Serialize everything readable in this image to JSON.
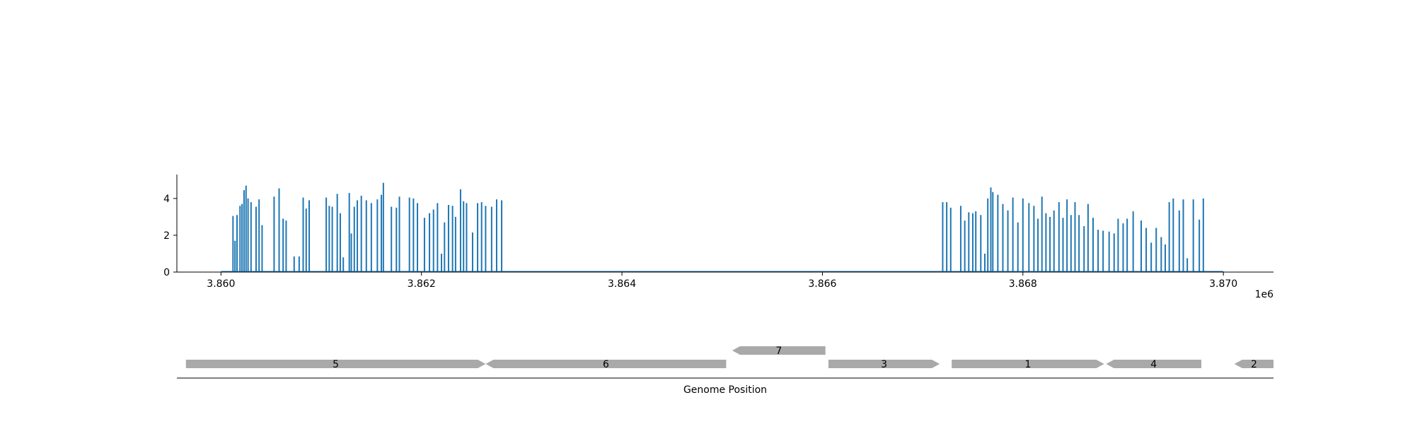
{
  "chart_data": [
    {
      "type": "bar",
      "title": "",
      "xlabel": "",
      "ylabel": "",
      "x_offset_label": "1e6",
      "xlim": [
        3859560,
        3870500
      ],
      "ylim": [
        0,
        5.3
      ],
      "xticks": [
        3860000,
        3862000,
        3864000,
        3866000,
        3868000,
        3870000
      ],
      "xtick_labels": [
        "3.860",
        "3.862",
        "3.864",
        "3.866",
        "3.868",
        "3.870"
      ],
      "yticks": [
        0,
        2,
        4
      ],
      "ytick_labels": [
        "0",
        "2",
        "4"
      ],
      "grid": false,
      "baseline_range": [
        3860000,
        3870000
      ],
      "color": "#1f77b4",
      "x": [
        3860120,
        3860140,
        3860160,
        3860190,
        3860210,
        3860230,
        3860250,
        3860270,
        3860300,
        3860350,
        3860380,
        3860410,
        3860530,
        3860580,
        3860620,
        3860650,
        3860730,
        3860780,
        3860820,
        3860850,
        3860880,
        3861050,
        3861080,
        3861110,
        3861160,
        3861190,
        3861220,
        3861280,
        3861300,
        3861330,
        3861360,
        3861400,
        3861450,
        3861500,
        3861560,
        3861600,
        3861620,
        3861700,
        3861750,
        3861780,
        3861880,
        3861920,
        3861960,
        3862030,
        3862080,
        3862120,
        3862160,
        3862200,
        3862230,
        3862270,
        3862310,
        3862340,
        3862390,
        3862420,
        3862450,
        3862510,
        3862560,
        3862600,
        3862640,
        3862700,
        3862750,
        3862800
      ],
      "values": [
        3.05,
        1.7,
        3.1,
        3.6,
        3.7,
        4.45,
        4.7,
        4.0,
        3.8,
        3.55,
        3.95,
        2.55,
        4.1,
        4.55,
        2.9,
        2.8,
        0.85,
        0.85,
        4.05,
        3.45,
        3.9,
        4.05,
        3.6,
        3.55,
        4.25,
        3.2,
        0.8,
        4.3,
        2.1,
        3.55,
        3.9,
        4.15,
        3.9,
        3.75,
        3.95,
        4.2,
        4.85,
        3.55,
        3.5,
        4.1,
        4.05,
        4.0,
        3.75,
        2.95,
        3.2,
        3.4,
        3.75,
        1.0,
        2.7,
        3.65,
        3.6,
        3.0,
        4.5,
        3.85,
        3.75,
        2.15,
        3.75,
        3.8,
        3.6,
        3.55,
        3.95,
        3.9
      ],
      "x2": [
        3867200,
        3867240,
        3867280,
        3867380,
        3867420,
        3867460,
        3867500,
        3867530,
        3867580,
        3867620,
        3867650,
        3867680,
        3867700,
        3867750,
        3867800,
        3867850,
        3867900,
        3867950,
        3868000,
        3868060,
        3868110,
        3868150,
        3868190,
        3868230,
        3868270,
        3868310,
        3868360,
        3868400,
        3868440,
        3868480,
        3868520,
        3868560,
        3868610,
        3868650,
        3868700,
        3868750,
        3868800,
        3868860,
        3868910,
        3868950,
        3869000,
        3869040,
        3869100,
        3869180,
        3869230,
        3869280,
        3869330,
        3869380,
        3869420,
        3869460,
        3869500,
        3869560,
        3869600,
        3869640,
        3869700,
        3869760,
        3869800
      ],
      "values2": [
        3.8,
        3.8,
        3.5,
        3.6,
        2.8,
        3.25,
        3.2,
        3.3,
        3.1,
        1.0,
        4.0,
        4.6,
        4.35,
        4.2,
        3.7,
        3.35,
        4.05,
        2.7,
        4.0,
        3.75,
        3.6,
        2.9,
        4.1,
        3.2,
        3.0,
        3.35,
        3.8,
        2.95,
        3.95,
        3.1,
        3.8,
        3.1,
        2.5,
        3.7,
        2.95,
        2.3,
        2.25,
        2.2,
        2.1,
        2.9,
        2.65,
        2.9,
        3.3,
        2.8,
        2.4,
        1.6,
        2.4,
        1.9,
        1.5,
        3.8,
        4.0,
        3.35,
        3.95,
        0.75,
        3.95,
        2.85,
        4.0
      ]
    },
    {
      "type": "gene-track",
      "xlabel": "Genome Position",
      "genes": [
        {
          "label": "5",
          "start": 3859650,
          "end": 3862640,
          "strand": "+",
          "row": 0
        },
        {
          "label": "6",
          "start": 3862640,
          "end": 3865040,
          "strand": "-",
          "row": 0
        },
        {
          "label": "7",
          "start": 3865100,
          "end": 3866030,
          "strand": "-",
          "row": 1
        },
        {
          "label": "3",
          "start": 3866060,
          "end": 3867170,
          "strand": "+",
          "row": 0
        },
        {
          "label": "1",
          "start": 3867290,
          "end": 3868810,
          "strand": "+",
          "row": 0
        },
        {
          "label": "4",
          "start": 3868830,
          "end": 3869780,
          "strand": "-",
          "row": 0
        },
        {
          "label": "2",
          "start": 3870110,
          "end": 3870500,
          "strand": "-",
          "row": 0
        }
      ],
      "color": "#a9a9a9"
    }
  ]
}
